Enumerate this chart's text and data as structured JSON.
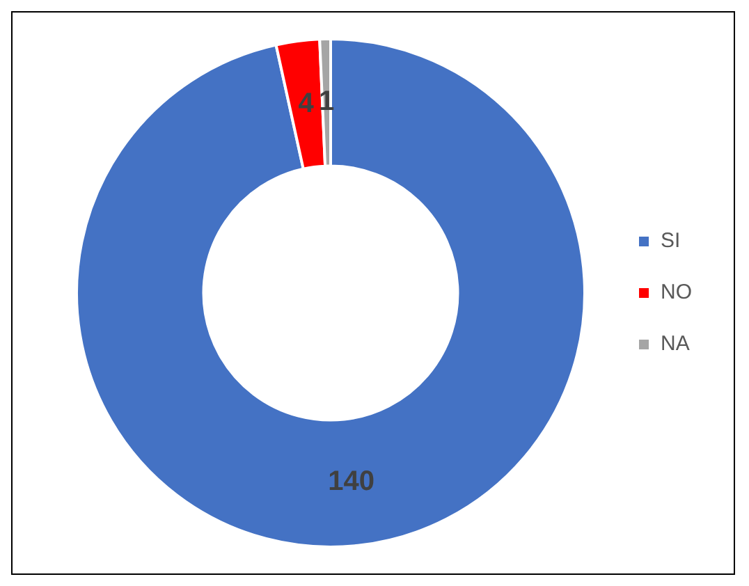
{
  "chart_data": {
    "type": "donut",
    "categories": [
      "SI",
      "NO",
      "NA"
    ],
    "values": [
      140,
      4,
      1
    ],
    "colors": [
      "#4472c4",
      "#ff0000",
      "#a5a5a5"
    ],
    "data_labels": true,
    "legend": "right"
  }
}
